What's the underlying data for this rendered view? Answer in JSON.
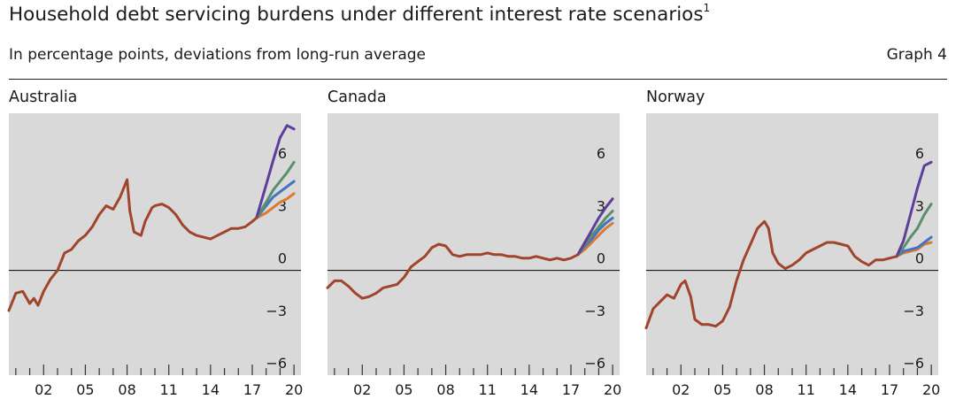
{
  "header": {
    "title": "Household debt servicing burdens under different interest rate scenarios",
    "title_footnote": "1",
    "subtitle": "In percentage points, deviations from long-run average",
    "graph_label": "Graph 4"
  },
  "colors": {
    "background": "#d9d9d9",
    "baseline": "#a0442c",
    "line_orange": "#d97a2e",
    "line_blue": "#4472c4",
    "line_green": "#5a8f6e",
    "line_purple": "#5b3f9b",
    "zero_line": "#000000"
  },
  "chart_data": [
    {
      "type": "line",
      "title": "Australia",
      "ylim": [
        -6,
        9
      ],
      "yticks": [
        6,
        3,
        0,
        -3,
        -6
      ],
      "ytick_labels": [
        "6",
        "3",
        "0",
        "−3",
        "−6"
      ],
      "xlim": [
        1999.5,
        2020.5
      ],
      "xticks": [
        2002,
        2005,
        2008,
        2011,
        2014,
        2017,
        2020
      ],
      "xtick_labels": [
        "02",
        "05",
        "08",
        "11",
        "14",
        "17",
        "20"
      ],
      "series": [
        {
          "color": "#a0442c",
          "x": [
            1999.5,
            2000,
            2000.5,
            2001,
            2001.3,
            2001.6,
            2002,
            2002.5,
            2003,
            2003.5,
            2004,
            2004.5,
            2005,
            2005.5,
            2006,
            2006.5,
            2007,
            2007.5,
            2008,
            2008.2,
            2008.5,
            2009,
            2009.3,
            2009.8,
            2010,
            2010.5,
            2011,
            2011.5,
            2012,
            2012.5,
            2013,
            2013.5,
            2014,
            2014.5,
            2015,
            2015.5,
            2016,
            2016.5,
            2017,
            2017.3
          ],
          "y": [
            -2.3,
            -1.3,
            -1.2,
            -1.9,
            -1.6,
            -2.0,
            -1.2,
            -0.5,
            0.0,
            1.0,
            1.2,
            1.7,
            2.0,
            2.5,
            3.2,
            3.7,
            3.5,
            4.2,
            5.2,
            3.4,
            2.2,
            2.0,
            2.8,
            3.6,
            3.7,
            3.8,
            3.6,
            3.2,
            2.6,
            2.2,
            2.0,
            1.9,
            1.8,
            2.0,
            2.2,
            2.4,
            2.4,
            2.5,
            2.8,
            3.0
          ]
        },
        {
          "color": "#d97a2e",
          "x": [
            2017.3,
            2018,
            2018.5,
            2019,
            2019.5,
            2020
          ],
          "y": [
            3.0,
            3.3,
            3.6,
            3.9,
            4.1,
            4.4
          ]
        },
        {
          "color": "#4472c4",
          "x": [
            2017.3,
            2018,
            2018.5,
            2019,
            2019.5,
            2020
          ],
          "y": [
            3.0,
            3.7,
            4.2,
            4.5,
            4.8,
            5.1
          ]
        },
        {
          "color": "#5a8f6e",
          "x": [
            2017.3,
            2018,
            2018.5,
            2019,
            2019.5,
            2020
          ],
          "y": [
            3.0,
            3.9,
            4.6,
            5.1,
            5.6,
            6.2
          ]
        },
        {
          "color": "#5b3f9b",
          "x": [
            2017.3,
            2018,
            2018.5,
            2019,
            2019.5,
            2020
          ],
          "y": [
            3.0,
            4.9,
            6.3,
            7.6,
            8.3,
            8.1
          ]
        }
      ]
    },
    {
      "type": "line",
      "title": "Canada",
      "ylim": [
        -6,
        9
      ],
      "yticks": [
        6,
        3,
        0,
        -3,
        -6
      ],
      "ytick_labels": [
        "6",
        "3",
        "0",
        "−3",
        "−6"
      ],
      "xlim": [
        1999.5,
        2020.5
      ],
      "xticks": [
        2002,
        2005,
        2008,
        2011,
        2014,
        2017,
        2020
      ],
      "xtick_labels": [
        "02",
        "05",
        "08",
        "11",
        "14",
        "17",
        "20"
      ],
      "series": [
        {
          "color": "#a0442c",
          "x": [
            1999.5,
            2000,
            2000.5,
            2001,
            2001.5,
            2002,
            2002.5,
            2003,
            2003.5,
            2004,
            2004.5,
            2005,
            2005.5,
            2006,
            2006.5,
            2007,
            2007.5,
            2008,
            2008.5,
            2009,
            2009.5,
            2010,
            2010.5,
            2011,
            2011.5,
            2012,
            2012.5,
            2013,
            2013.5,
            2014,
            2014.5,
            2015,
            2015.5,
            2016,
            2016.5,
            2017,
            2017.5
          ],
          "y": [
            -1.0,
            -0.6,
            -0.6,
            -0.9,
            -1.3,
            -1.6,
            -1.5,
            -1.3,
            -1.0,
            -0.9,
            -0.8,
            -0.4,
            0.2,
            0.5,
            0.8,
            1.3,
            1.5,
            1.4,
            0.9,
            0.8,
            0.9,
            0.9,
            0.9,
            1.0,
            0.9,
            0.9,
            0.8,
            0.8,
            0.7,
            0.7,
            0.8,
            0.7,
            0.6,
            0.7,
            0.6,
            0.7,
            0.9
          ]
        },
        {
          "color": "#d97a2e",
          "x": [
            2017.5,
            2018,
            2018.5,
            2019,
            2019.5,
            2020
          ],
          "y": [
            0.9,
            1.2,
            1.6,
            2.0,
            2.4,
            2.7
          ]
        },
        {
          "color": "#4472c4",
          "x": [
            2017.5,
            2018,
            2018.5,
            2019,
            2019.5,
            2020
          ],
          "y": [
            0.9,
            1.4,
            1.8,
            2.3,
            2.7,
            3.0
          ]
        },
        {
          "color": "#5a8f6e",
          "x": [
            2017.5,
            2018,
            2018.5,
            2019,
            2019.5,
            2020
          ],
          "y": [
            0.9,
            1.5,
            2.0,
            2.5,
            3.0,
            3.4
          ]
        },
        {
          "color": "#5b3f9b",
          "x": [
            2017.5,
            2018,
            2018.5,
            2019,
            2019.5,
            2020
          ],
          "y": [
            0.9,
            1.6,
            2.3,
            3.0,
            3.6,
            4.1
          ]
        }
      ]
    },
    {
      "type": "line",
      "title": "Norway",
      "ylim": [
        -6,
        9
      ],
      "yticks": [
        6,
        3,
        0,
        -3,
        -6
      ],
      "ytick_labels": [
        "6",
        "3",
        "0",
        "−3",
        "−6"
      ],
      "xlim": [
        1999.5,
        2020.5
      ],
      "xticks": [
        2002,
        2005,
        2008,
        2011,
        2014,
        2017,
        2020
      ],
      "xtick_labels": [
        "02",
        "05",
        "08",
        "11",
        "14",
        "17",
        "20"
      ],
      "series": [
        {
          "color": "#a0442c",
          "x": [
            1999.5,
            2000,
            2000.5,
            2001,
            2001.5,
            2002,
            2002.3,
            2002.7,
            2003,
            2003.5,
            2004,
            2004.5,
            2005,
            2005.5,
            2006,
            2006.5,
            2007,
            2007.5,
            2008,
            2008.3,
            2008.6,
            2009,
            2009.5,
            2010,
            2010.5,
            2011,
            2011.5,
            2012,
            2012.5,
            2013,
            2013.5,
            2014,
            2014.5,
            2015,
            2015.5,
            2016,
            2016.5,
            2017,
            2017.5
          ],
          "y": [
            -3.3,
            -2.2,
            -1.8,
            -1.4,
            -1.6,
            -0.8,
            -0.6,
            -1.5,
            -2.8,
            -3.1,
            -3.1,
            -3.2,
            -2.9,
            -2.1,
            -0.6,
            0.6,
            1.5,
            2.4,
            2.8,
            2.4,
            1.0,
            0.4,
            0.1,
            0.3,
            0.6,
            1.0,
            1.2,
            1.4,
            1.6,
            1.6,
            1.5,
            1.4,
            0.8,
            0.5,
            0.3,
            0.6,
            0.6,
            0.7,
            0.8
          ]
        },
        {
          "color": "#d97a2e",
          "x": [
            2017.5,
            2018,
            2018.5,
            2019,
            2019.5,
            2020
          ],
          "y": [
            0.8,
            1.0,
            1.1,
            1.2,
            1.5,
            1.6
          ]
        },
        {
          "color": "#4472c4",
          "x": [
            2017.5,
            2018,
            2018.5,
            2019,
            2019.5,
            2020
          ],
          "y": [
            0.8,
            1.1,
            1.2,
            1.3,
            1.6,
            1.9
          ]
        },
        {
          "color": "#5a8f6e",
          "x": [
            2017.5,
            2018,
            2018.5,
            2019,
            2019.5,
            2020
          ],
          "y": [
            0.8,
            1.3,
            1.9,
            2.4,
            3.2,
            3.8
          ]
        },
        {
          "color": "#5b3f9b",
          "x": [
            2017.5,
            2018,
            2018.5,
            2019,
            2019.5,
            2020
          ],
          "y": [
            0.8,
            1.7,
            3.2,
            4.7,
            6.0,
            6.2
          ]
        }
      ]
    }
  ]
}
